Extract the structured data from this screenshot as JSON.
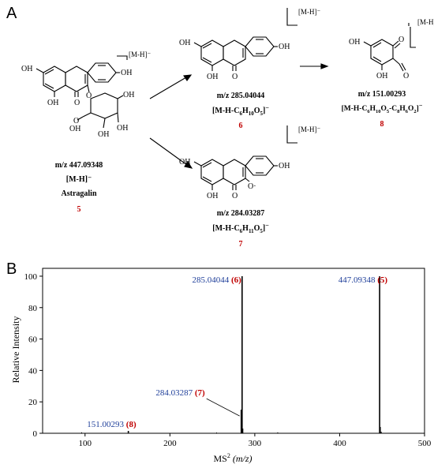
{
  "panels": {
    "a": "A",
    "b": "B"
  },
  "ion_bracket": "[M-H]⁻",
  "labels": {
    "OH": "OH",
    "O": "O"
  },
  "compounds": {
    "c5": {
      "mz": "m/z 447.09348",
      "ion": "[M-H]⁻",
      "name": "Astragalin",
      "num": "5"
    },
    "c6": {
      "mz": "m/z 285.04044",
      "ion_pre": "[M-H-C",
      "num": "6"
    },
    "c7": {
      "mz": "m/z 284.03287",
      "ion_pre": "[M-H-C",
      "num": "7"
    },
    "c8": {
      "mz": "m/z 151.00293",
      "ion_pre": "[M-H-C",
      "num": "8"
    }
  },
  "colors": {
    "red": "#c00000",
    "blue": "#1f3f9a",
    "black": "#000000"
  },
  "chart_data": {
    "type": "bar",
    "xlabel_main": "MS",
    "xlabel_sup": "2",
    "xlabel_unit": "(m/z)",
    "ylabel": "Relative Intensity",
    "xlim": [
      50,
      500
    ],
    "ylim": [
      0,
      105
    ],
    "xticks": [
      100,
      200,
      300,
      400,
      500
    ],
    "yticks": [
      0,
      20,
      40,
      60,
      80,
      100
    ],
    "peaks": [
      {
        "x": 151.00293,
        "y": 1.5,
        "label": "151.00293",
        "tag": "(8)"
      },
      {
        "x": 284.03287,
        "y": 15,
        "label": "284.03287",
        "tag": "(7)"
      },
      {
        "x": 285.04044,
        "y": 100,
        "label": "285.04044",
        "tag": "(6)"
      },
      {
        "x": 447.09348,
        "y": 100,
        "label": "447.09348",
        "tag": "(5)"
      }
    ],
    "minor_peaks": [
      {
        "x": 96,
        "y": 0.6
      },
      {
        "x": 255,
        "y": 0.5
      },
      {
        "x": 286,
        "y": 3
      },
      {
        "x": 327,
        "y": 0.6
      },
      {
        "x": 448,
        "y": 4
      },
      {
        "x": 449,
        "y": 1
      }
    ]
  }
}
